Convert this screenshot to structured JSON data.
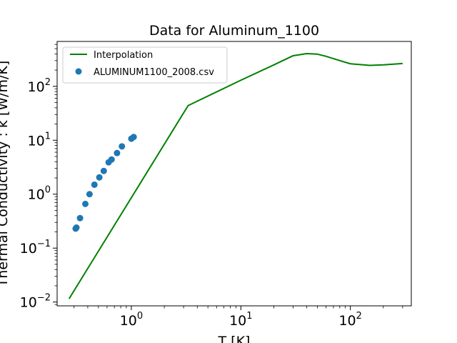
{
  "chart_data": {
    "type": "line+scatter",
    "title": "Data for Aluminum_1100",
    "xlabel": "T [K]",
    "ylabel": "Thermal Conductivity : k [W/m/K]",
    "xscale": "log",
    "yscale": "log",
    "xlim": [
      0.21,
      360
    ],
    "ylim": [
      0.0085,
      680
    ],
    "grid": false,
    "legend_position": "top-left",
    "x_ticks": [
      {
        "value": 1,
        "base": "10",
        "exp": "0"
      },
      {
        "value": 10,
        "base": "10",
        "exp": "1"
      },
      {
        "value": 100,
        "base": "10",
        "exp": "2"
      }
    ],
    "y_ticks": [
      {
        "value": 0.01,
        "base": "10",
        "exp": "−2"
      },
      {
        "value": 0.1,
        "base": "10",
        "exp": "−1"
      },
      {
        "value": 1,
        "base": "10",
        "exp": "0"
      },
      {
        "value": 10,
        "base": "10",
        "exp": "1"
      },
      {
        "value": 100,
        "base": "10",
        "exp": "2"
      }
    ],
    "series": [
      {
        "name": "Interpolation",
        "kind": "line",
        "color": "#008000",
        "x": [
          0.27,
          3.3,
          10,
          20,
          30,
          40,
          50,
          60,
          80,
          100,
          150,
          200,
          300
        ],
        "y": [
          0.0115,
          44,
          130,
          250,
          370,
          405,
          395,
          360,
          300,
          262,
          245,
          250,
          265
        ]
      },
      {
        "name": "ALUMINUM1100_2008.csv",
        "kind": "scatter",
        "color": "#1f77b4",
        "x": [
          0.31,
          0.315,
          0.34,
          0.38,
          0.415,
          0.46,
          0.51,
          0.56,
          0.62,
          0.66,
          0.74,
          0.82,
          1.0,
          1.05
        ],
        "y": [
          0.23,
          0.24,
          0.36,
          0.66,
          1.0,
          1.5,
          2.05,
          2.7,
          3.9,
          4.4,
          5.8,
          7.7,
          10.7,
          11.5
        ]
      }
    ]
  }
}
